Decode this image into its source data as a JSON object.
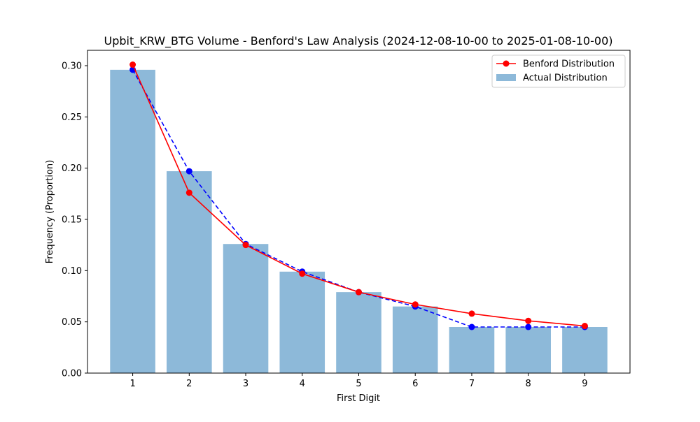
{
  "chart_data": {
    "type": "bar",
    "title": "Upbit_KRW_BTG Volume - Benford's Law Analysis (2024-12-08-10-00 to 2025-01-08-10-00)",
    "xlabel": "First Digit",
    "ylabel": "Frequency (Proportion)",
    "categories": [
      "1",
      "2",
      "3",
      "4",
      "5",
      "6",
      "7",
      "8",
      "9"
    ],
    "ylim": [
      0,
      0.315
    ],
    "yticks": [
      "0.00",
      "0.05",
      "0.10",
      "0.15",
      "0.20",
      "0.25",
      "0.30"
    ],
    "grid": false,
    "legend_position": "top-right",
    "series": [
      {
        "name": "Actual Distribution",
        "kind": "bar",
        "color": "#8db9d9",
        "values": [
          0.296,
          0.197,
          0.126,
          0.099,
          0.079,
          0.065,
          0.045,
          0.045,
          0.045
        ]
      },
      {
        "kind": "line",
        "style": "dashed",
        "color": "#0000ff",
        "values": [
          0.296,
          0.197,
          0.126,
          0.099,
          0.079,
          0.065,
          0.045,
          0.045,
          0.045
        ]
      },
      {
        "name": "Benford Distribution",
        "kind": "line",
        "style": "solid",
        "color": "#ff0000",
        "values": [
          0.301,
          0.176,
          0.125,
          0.097,
          0.079,
          0.067,
          0.058,
          0.051,
          0.046
        ]
      }
    ]
  }
}
